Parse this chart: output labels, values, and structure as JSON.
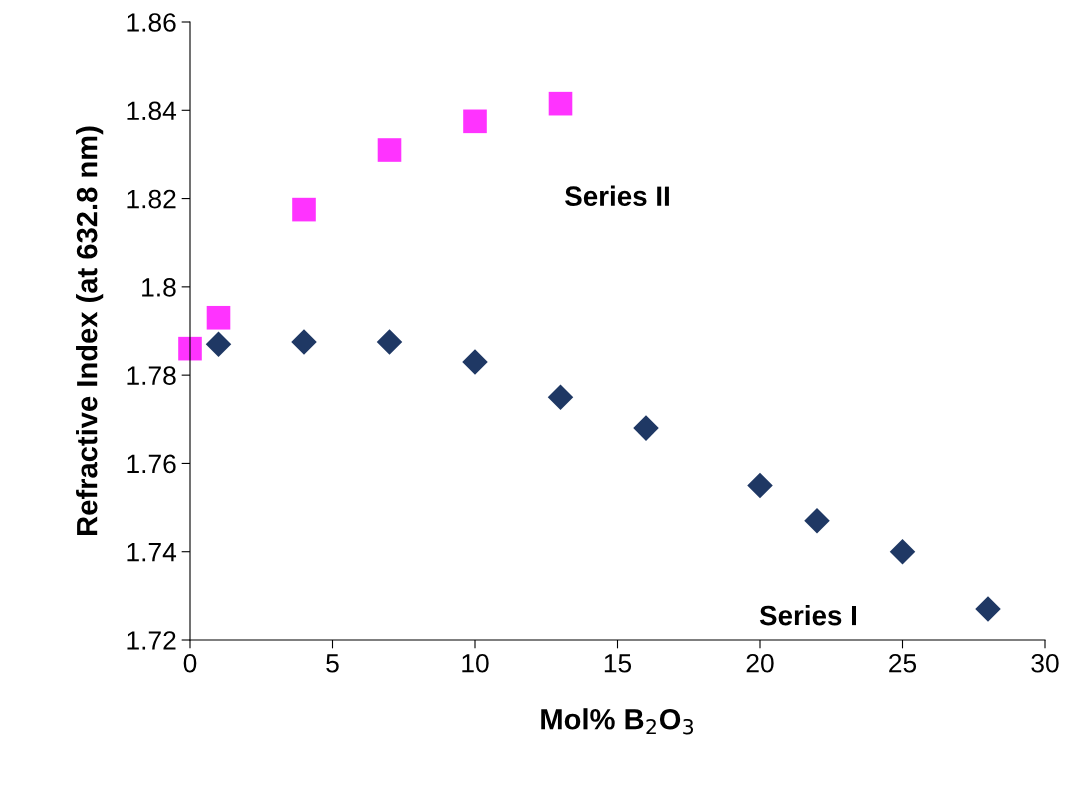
{
  "chart_data": {
    "type": "scatter",
    "xlabel": "Mol% B$_{2}$O$_{3}$",
    "ylabel": "Refractive Index (at 632.8 nm)",
    "xlim": [
      0,
      30
    ],
    "xticks": [
      0,
      5,
      10,
      15,
      20,
      25,
      30
    ],
    "ylim": [
      1.72,
      1.86
    ],
    "yticks": [
      1.72,
      1.74,
      1.76,
      1.78,
      1.8,
      1.82,
      1.84,
      1.86
    ],
    "grid": false,
    "legend": false,
    "series": [
      {
        "name": "Series I",
        "color": "#1f3864",
        "marker": "diamond",
        "x": [
          1,
          4,
          7,
          10,
          13,
          16,
          20,
          22,
          25,
          28
        ],
        "values": [
          1.787,
          1.7875,
          1.7875,
          1.783,
          1.775,
          1.768,
          1.755,
          1.747,
          1.74,
          1.727
        ]
      },
      {
        "name": "Series II",
        "color": "#ff33ff",
        "marker": "square",
        "x": [
          0,
          1,
          4,
          7,
          10,
          13
        ],
        "values": [
          1.786,
          1.793,
          1.8175,
          1.831,
          1.8375,
          1.8415
        ]
      }
    ]
  }
}
